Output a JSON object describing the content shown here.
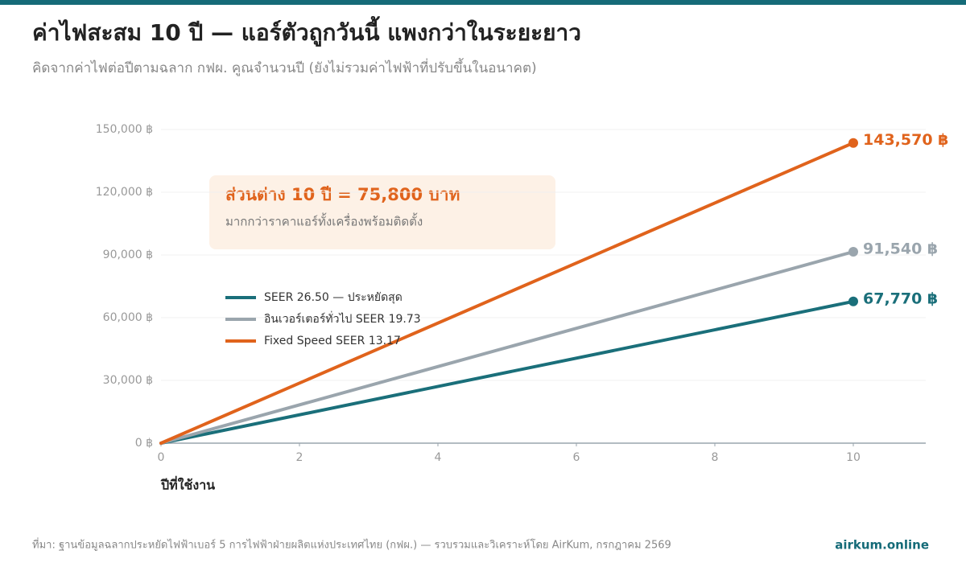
{
  "chart_data": {
    "type": "line",
    "title": "ค่าไฟสะสม 10 ปี — แอร์ตัวถูกวันนี้ แพงกว่าในระยะยาว",
    "subtitle": "คิดจากค่าไฟต่อปีตามฉลาก กฟผ. คูณจำนวนปี (ยังไม่รวมค่าไฟฟ้าที่ปรับขึ้นในอนาคต)",
    "x_label": "ปีที่ใช้งาน",
    "x": [
      0,
      10
    ],
    "xlim": [
      0,
      11
    ],
    "xticks": [
      0,
      2,
      4,
      6,
      8,
      10
    ],
    "ylim": [
      0,
      150000
    ],
    "yticks": [
      {
        "value": 0,
        "label": "0 ฿"
      },
      {
        "value": 30000,
        "label": "30,000 ฿"
      },
      {
        "value": 60000,
        "label": "60,000 ฿"
      },
      {
        "value": 90000,
        "label": "90,000 ฿"
      },
      {
        "value": 120000,
        "label": "120,000 ฿"
      },
      {
        "value": 150000,
        "label": "150,000 ฿"
      }
    ],
    "grid": true,
    "series": [
      {
        "name": "SEER 26.50 — ประหยัดสุด",
        "color": "#1a6f7a",
        "values": [
          0,
          67770
        ],
        "value_labels": [
          null,
          "67,770 ฿"
        ]
      },
      {
        "name": "อินเวอร์เตอร์ทั่วไป SEER 19.73",
        "color": "#9aa5ad",
        "values": [
          0,
          91540
        ],
        "value_labels": [
          null,
          "91,540 ฿"
        ]
      },
      {
        "name": "Fixed Speed SEER 13.17",
        "color": "#e0631c",
        "values": [
          0,
          143570
        ],
        "value_labels": [
          null,
          "143,570 ฿"
        ]
      }
    ],
    "annotation": {
      "title": "ส่วนต่าง 10 ปี = 75,800 บาท",
      "text": "มากกว่าราคาแอร์ทั้งเครื่องพร้อมติดตั้ง"
    },
    "source": "ที่มา: ฐานข้อมูลฉลากประหยัดไฟฟ้าเบอร์ 5 การไฟฟ้าฝ่ายผลิตแห่งประเทศไทย (กฟผ.) — รวบรวมและวิเคราะห์โดย AirKum, กรกฎาคม 2569",
    "brand": "airkum.online"
  }
}
